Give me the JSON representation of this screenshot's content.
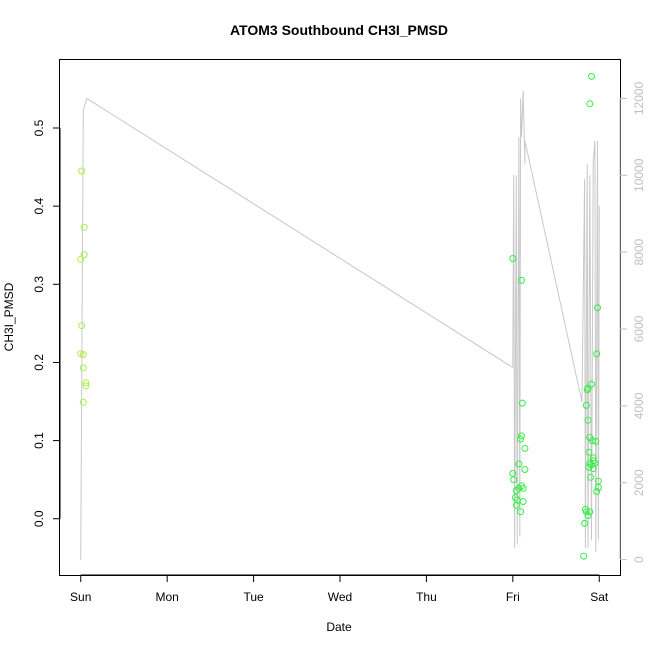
{
  "chart_data": {
    "type": "scatter",
    "title": "ATOM3 Southbound CH3I_PMSD",
    "xlabel": "Date",
    "ylabel": "CH3I_PMSD",
    "x_tick_labels": [
      "Sun",
      "Mon",
      "Tue",
      "Wed",
      "Thu",
      "Fri",
      "Sat"
    ],
    "x_tick_values": [
      0,
      1,
      2,
      3,
      4,
      5,
      6
    ],
    "xlim": [
      -0.24,
      6.24
    ],
    "ylim": [
      -0.072,
      0.587
    ],
    "y_ticks": [
      0.0,
      0.1,
      0.2,
      0.3,
      0.4,
      0.5
    ],
    "y_tick_labels": [
      "0.0",
      "0.1",
      "0.2",
      "0.3",
      "0.4",
      "0.5"
    ],
    "y2lim": [
      -400,
      13000
    ],
    "y2_ticks": [
      0,
      2000,
      4000,
      6000,
      8000,
      10000,
      12000
    ],
    "y2_tick_labels": [
      "0",
      "2000",
      "4000",
      "6000",
      "8000",
      "10000",
      "12000"
    ],
    "colors": {
      "points_early": "#aaee44",
      "points_late": "#33ee44",
      "line": "#c8c8c8",
      "right_axis": "#bfbfbf"
    },
    "points_early": [
      [
        0.01,
        0.445
      ],
      [
        0.04,
        0.373
      ],
      [
        0.0,
        0.332
      ],
      [
        0.04,
        0.338
      ],
      [
        0.01,
        0.247
      ],
      [
        0.0,
        0.211
      ],
      [
        0.03,
        0.21
      ],
      [
        0.03,
        0.193
      ],
      [
        0.06,
        0.174
      ],
      [
        0.06,
        0.17
      ],
      [
        0.03,
        0.149
      ]
    ],
    "points_late": [
      [
        5.0,
        0.333
      ],
      [
        5.1,
        0.305
      ],
      [
        5.11,
        0.148
      ],
      [
        5.1,
        0.106
      ],
      [
        5.09,
        0.102
      ],
      [
        5.14,
        0.09
      ],
      [
        5.07,
        0.07
      ],
      [
        5.14,
        0.063
      ],
      [
        5.0,
        0.058
      ],
      [
        5.01,
        0.05
      ],
      [
        5.1,
        0.042
      ],
      [
        5.07,
        0.039
      ],
      [
        5.12,
        0.039
      ],
      [
        5.04,
        0.036
      ],
      [
        5.03,
        0.027
      ],
      [
        5.05,
        0.024
      ],
      [
        5.12,
        0.022
      ],
      [
        5.04,
        0.017
      ],
      [
        5.09,
        0.009
      ],
      [
        5.91,
        0.566
      ],
      [
        5.89,
        0.531
      ],
      [
        5.98,
        0.27
      ],
      [
        5.97,
        0.211
      ],
      [
        5.91,
        0.172
      ],
      [
        5.87,
        0.167
      ],
      [
        5.86,
        0.165
      ],
      [
        5.85,
        0.145
      ],
      [
        5.87,
        0.126
      ],
      [
        5.89,
        0.104
      ],
      [
        5.92,
        0.1
      ],
      [
        5.96,
        0.099
      ],
      [
        5.88,
        0.085
      ],
      [
        5.93,
        0.078
      ],
      [
        5.93,
        0.074
      ],
      [
        5.89,
        0.071
      ],
      [
        5.95,
        0.071
      ],
      [
        5.91,
        0.069
      ],
      [
        5.93,
        0.064
      ],
      [
        5.88,
        0.066
      ],
      [
        5.9,
        0.053
      ],
      [
        5.99,
        0.048
      ],
      [
        5.99,
        0.04
      ],
      [
        5.97,
        0.035
      ],
      [
        5.84,
        0.012
      ],
      [
        5.85,
        0.009
      ],
      [
        5.89,
        0.009
      ],
      [
        5.87,
        0.004
      ],
      [
        5.83,
        -0.006
      ],
      [
        5.82,
        -0.048
      ]
    ],
    "line_series_right_axis": [
      [
        0.0,
        0
      ],
      [
        0.03,
        11700
      ],
      [
        0.07,
        12000
      ],
      [
        5.0,
        5000
      ],
      [
        5.01,
        10000
      ],
      [
        5.02,
        300
      ],
      [
        5.04,
        10000
      ],
      [
        5.05,
        400
      ],
      [
        5.07,
        11000
      ],
      [
        5.08,
        600
      ],
      [
        5.09,
        12000
      ],
      [
        5.1,
        11000
      ],
      [
        5.12,
        12200
      ],
      [
        5.14,
        10300
      ],
      [
        5.14,
        10900
      ],
      [
        5.8,
        4100
      ],
      [
        5.83,
        9900
      ],
      [
        5.84,
        300
      ],
      [
        5.86,
        10300
      ],
      [
        5.87,
        300
      ],
      [
        5.89,
        10000
      ],
      [
        5.91,
        500
      ],
      [
        5.93,
        10300
      ],
      [
        5.95,
        10900
      ],
      [
        5.96,
        200
      ],
      [
        5.98,
        10900
      ],
      [
        5.99,
        500
      ],
      [
        6.0,
        9200
      ]
    ]
  }
}
